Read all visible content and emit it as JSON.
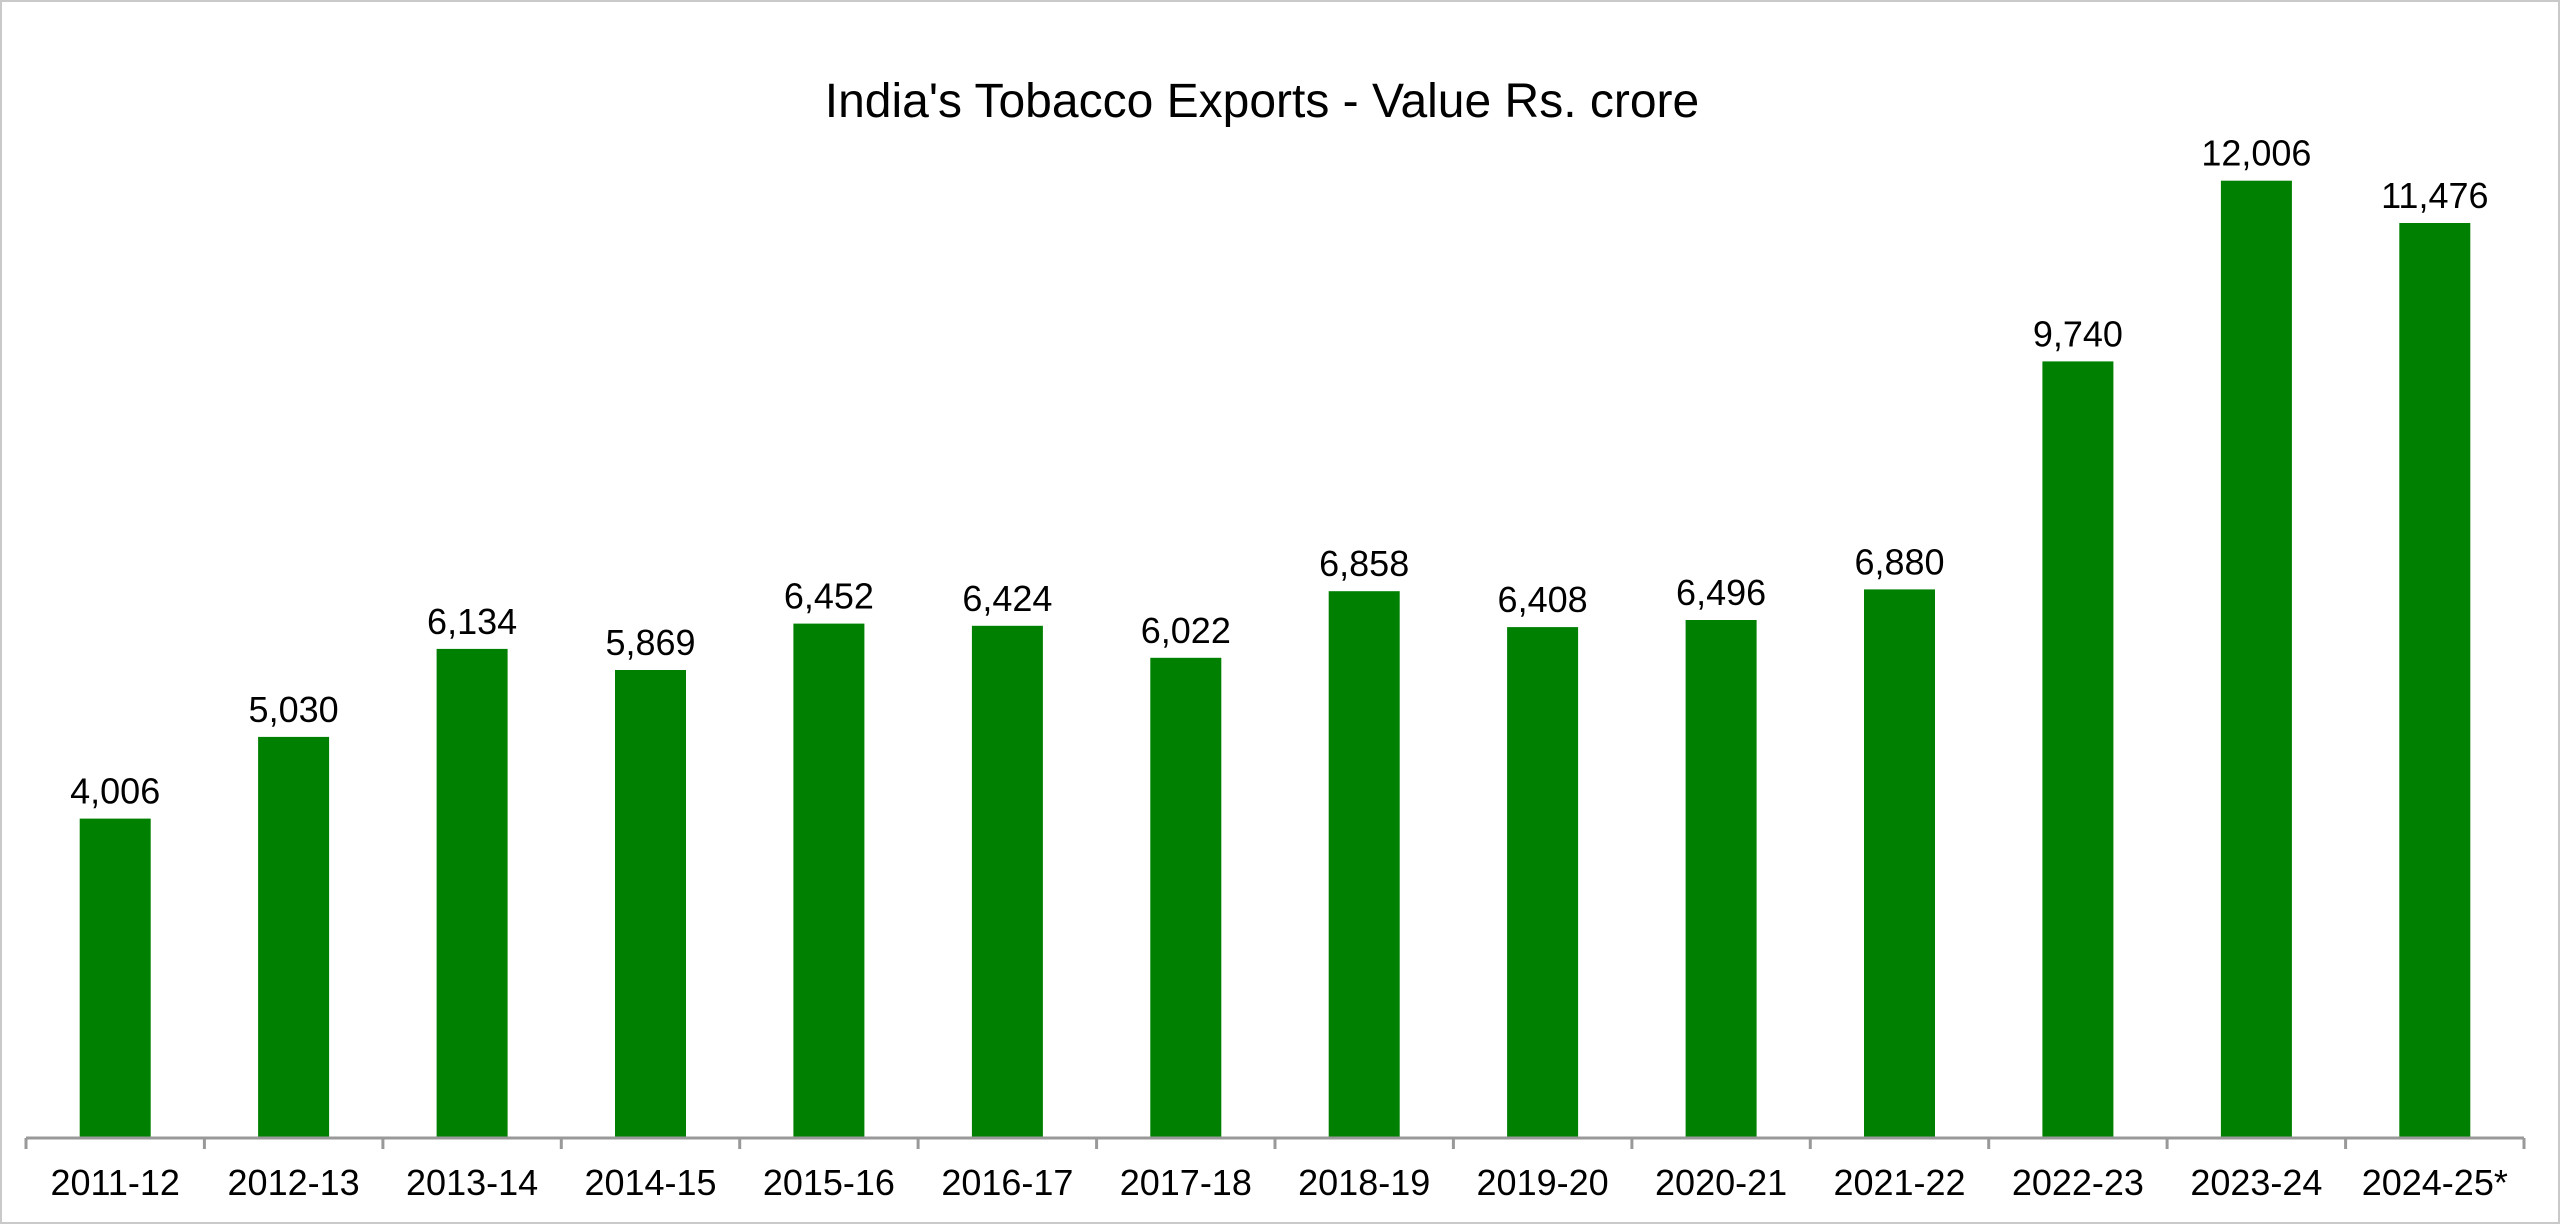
{
  "chart_data": {
    "type": "bar",
    "title": "India's Tobacco Exports - Value Rs. crore",
    "xlabel": "",
    "ylabel": "",
    "categories": [
      "2011-12",
      "2012-13",
      "2013-14",
      "2014-15",
      "2015-16",
      "2016-17",
      "2017-18",
      "2018-19",
      "2019-20",
      "2020-21",
      "2021-22",
      "2022-23",
      "2023-24",
      "2024-25*"
    ],
    "values": [
      4006,
      5030,
      6134,
      5869,
      6452,
      6424,
      6022,
      6858,
      6408,
      6496,
      6880,
      9740,
      12006,
      11476
    ],
    "data_labels": [
      "4,006",
      "5,030",
      "6,134",
      "5,869",
      "6,452",
      "6,424",
      "6,022",
      "6,858",
      "6,408",
      "6,496",
      "6,880",
      "9,740",
      "12,006",
      "11,476"
    ],
    "ylim": [
      0,
      12800
    ],
    "grid": false,
    "legend": "none",
    "bar_color": "#008000",
    "axis_color": "#999999"
  }
}
